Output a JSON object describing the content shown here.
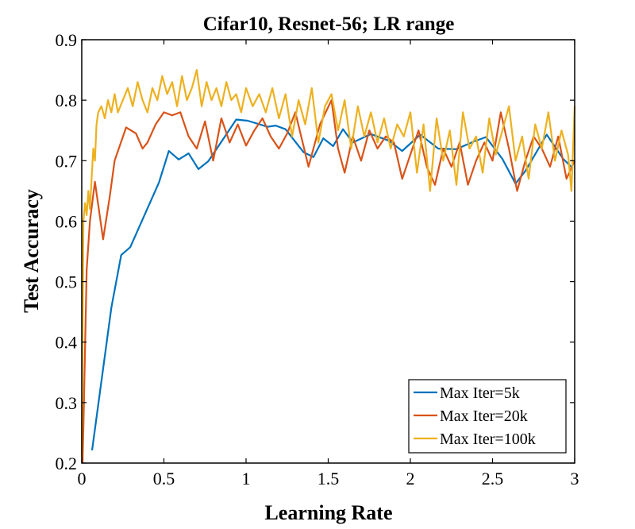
{
  "chart_data": {
    "type": "line",
    "title": "Cifar10, Resnet-56; LR range",
    "xlabel": "Learning Rate",
    "ylabel": "Test Accuracy",
    "xlim": [
      0,
      3
    ],
    "ylim": [
      0.2,
      0.9
    ],
    "xticks": [
      0,
      0.5,
      1,
      1.5,
      2,
      2.5,
      3
    ],
    "xtick_labels": [
      "0",
      "0.5",
      "1",
      "1.5",
      "2",
      "2.5",
      "3"
    ],
    "yticks": [
      0.2,
      0.3,
      0.4,
      0.5,
      0.6,
      0.7,
      0.8,
      0.9
    ],
    "ytick_labels": [
      "0.2",
      "0.3",
      "0.4",
      "0.5",
      "0.6",
      "0.7",
      "0.8",
      "0.9"
    ],
    "grid": false,
    "legend_position": "bottom-right",
    "series": [
      {
        "name": "Max Iter=5k",
        "color": "#0072BD",
        "x": [
          0.063,
          0.18,
          0.24,
          0.295,
          0.47,
          0.53,
          0.59,
          0.65,
          0.71,
          0.77,
          0.82,
          0.94,
          1.01,
          1.13,
          1.18,
          1.24,
          1.35,
          1.41,
          1.47,
          1.53,
          1.59,
          1.65,
          1.76,
          1.87,
          1.95,
          2.06,
          2.17,
          2.28,
          2.39,
          2.46,
          2.56,
          2.64,
          2.7,
          2.83,
          2.93,
          2.99
        ],
        "y": [
          0.221,
          0.457,
          0.544,
          0.557,
          0.664,
          0.716,
          0.702,
          0.712,
          0.686,
          0.699,
          0.719,
          0.768,
          0.766,
          0.756,
          0.758,
          0.752,
          0.714,
          0.706,
          0.737,
          0.724,
          0.752,
          0.73,
          0.744,
          0.733,
          0.716,
          0.743,
          0.72,
          0.719,
          0.732,
          0.739,
          0.703,
          0.662,
          0.683,
          0.743,
          0.703,
          0.687
        ]
      },
      {
        "name": "Max Iter=20k",
        "color": "#D95319",
        "x": [
          0.005,
          0.01,
          0.03,
          0.05,
          0.08,
          0.13,
          0.17,
          0.2,
          0.27,
          0.33,
          0.37,
          0.4,
          0.45,
          0.5,
          0.55,
          0.6,
          0.65,
          0.7,
          0.75,
          0.8,
          0.85,
          0.9,
          0.95,
          1.0,
          1.05,
          1.1,
          1.15,
          1.2,
          1.25,
          1.3,
          1.38,
          1.45,
          1.52,
          1.56,
          1.6,
          1.65,
          1.7,
          1.75,
          1.8,
          1.85,
          1.9,
          1.95,
          2.0,
          2.05,
          2.1,
          2.15,
          2.2,
          2.25,
          2.3,
          2.35,
          2.4,
          2.45,
          2.5,
          2.55,
          2.6,
          2.65,
          2.7,
          2.75,
          2.8,
          2.85,
          2.9,
          2.95,
          3.0
        ],
        "y": [
          0.2,
          0.26,
          0.52,
          0.6,
          0.665,
          0.57,
          0.64,
          0.7,
          0.755,
          0.745,
          0.72,
          0.73,
          0.76,
          0.78,
          0.775,
          0.78,
          0.74,
          0.72,
          0.765,
          0.7,
          0.77,
          0.73,
          0.76,
          0.725,
          0.75,
          0.77,
          0.74,
          0.72,
          0.745,
          0.78,
          0.69,
          0.76,
          0.8,
          0.72,
          0.68,
          0.74,
          0.7,
          0.75,
          0.72,
          0.74,
          0.73,
          0.67,
          0.71,
          0.75,
          0.69,
          0.66,
          0.72,
          0.69,
          0.73,
          0.66,
          0.7,
          0.73,
          0.7,
          0.78,
          0.72,
          0.65,
          0.7,
          0.74,
          0.72,
          0.69,
          0.74,
          0.67,
          0.7
        ]
      },
      {
        "name": "Max Iter=100k",
        "color": "#EDB120",
        "x": [
          0.0,
          0.01,
          0.02,
          0.03,
          0.04,
          0.05,
          0.06,
          0.07,
          0.08,
          0.09,
          0.1,
          0.12,
          0.14,
          0.16,
          0.18,
          0.2,
          0.22,
          0.25,
          0.28,
          0.31,
          0.34,
          0.37,
          0.4,
          0.43,
          0.46,
          0.49,
          0.52,
          0.55,
          0.58,
          0.61,
          0.64,
          0.67,
          0.7,
          0.73,
          0.76,
          0.79,
          0.82,
          0.85,
          0.88,
          0.91,
          0.94,
          0.97,
          1.0,
          1.04,
          1.08,
          1.12,
          1.16,
          1.2,
          1.24,
          1.28,
          1.32,
          1.36,
          1.4,
          1.44,
          1.48,
          1.52,
          1.56,
          1.6,
          1.64,
          1.68,
          1.72,
          1.76,
          1.8,
          1.84,
          1.88,
          1.92,
          1.96,
          2.0,
          2.04,
          2.08,
          2.12,
          2.16,
          2.2,
          2.24,
          2.28,
          2.32,
          2.36,
          2.4,
          2.44,
          2.48,
          2.52,
          2.56,
          2.6,
          2.64,
          2.68,
          2.72,
          2.76,
          2.8,
          2.84,
          2.88,
          2.92,
          2.96,
          2.98,
          3.0
        ],
        "y": [
          0.21,
          0.6,
          0.63,
          0.61,
          0.65,
          0.62,
          0.67,
          0.72,
          0.7,
          0.76,
          0.78,
          0.79,
          0.77,
          0.8,
          0.78,
          0.81,
          0.78,
          0.8,
          0.82,
          0.79,
          0.83,
          0.8,
          0.78,
          0.82,
          0.8,
          0.84,
          0.81,
          0.83,
          0.79,
          0.84,
          0.8,
          0.82,
          0.85,
          0.79,
          0.83,
          0.8,
          0.82,
          0.79,
          0.83,
          0.8,
          0.81,
          0.78,
          0.82,
          0.79,
          0.81,
          0.78,
          0.82,
          0.77,
          0.81,
          0.74,
          0.8,
          0.76,
          0.82,
          0.73,
          0.79,
          0.81,
          0.75,
          0.8,
          0.72,
          0.79,
          0.74,
          0.78,
          0.73,
          0.77,
          0.72,
          0.76,
          0.74,
          0.78,
          0.68,
          0.76,
          0.65,
          0.77,
          0.7,
          0.75,
          0.66,
          0.78,
          0.72,
          0.74,
          0.68,
          0.77,
          0.71,
          0.75,
          0.79,
          0.7,
          0.74,
          0.67,
          0.76,
          0.72,
          0.78,
          0.7,
          0.75,
          0.71,
          0.65,
          0.79
        ]
      }
    ]
  }
}
